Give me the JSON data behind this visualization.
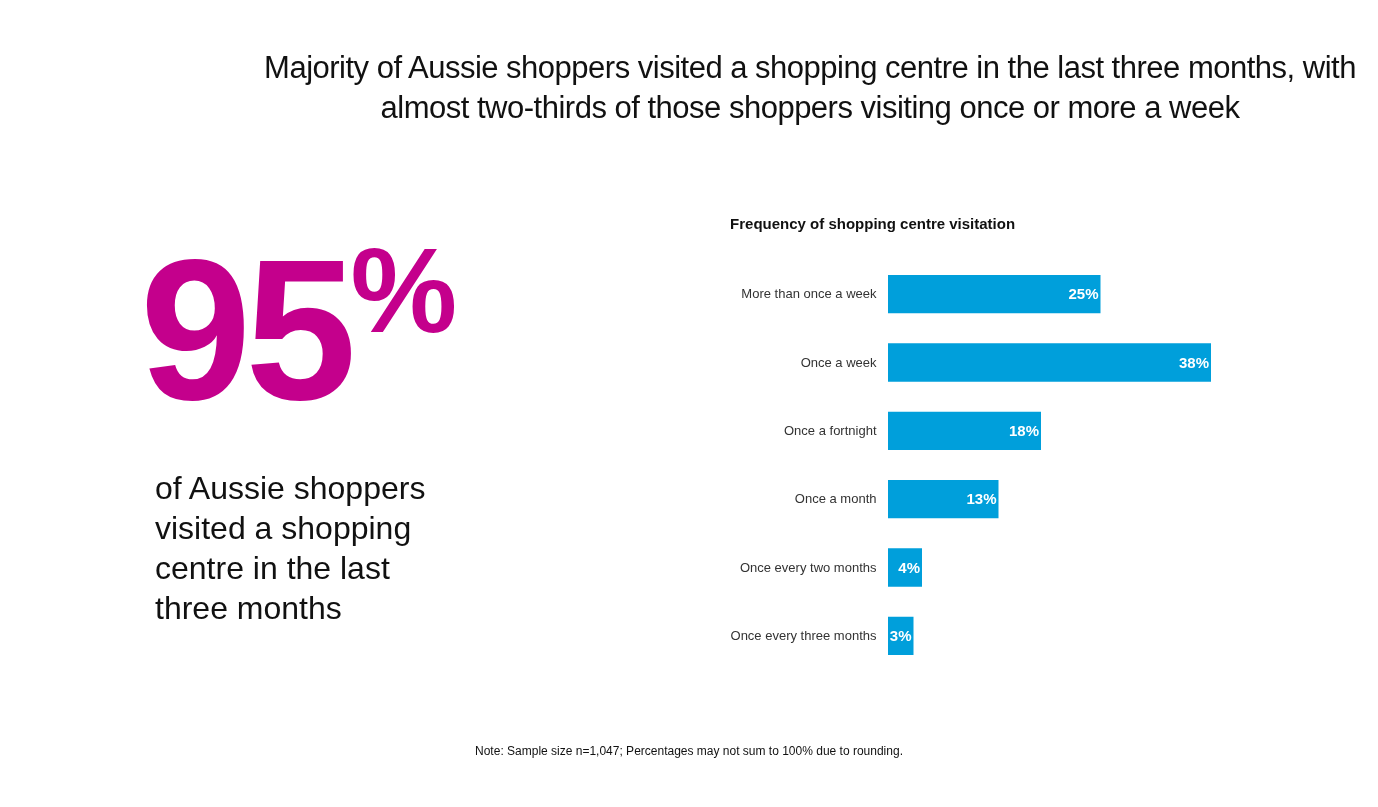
{
  "chart_data": [
    {
      "type": "other",
      "title": "Majority of Aussie shoppers visited a shopping centre in the last three months, with almost two-thirds of those shoppers visiting once or more a week",
      "color": "#c4008c",
      "annotations": [
        "95%",
        "of Aussie shoppers visited a shopping centre in the last three months"
      ]
    },
    {
      "type": "bar",
      "orientation": "horizontal",
      "title": "Frequency of shopping centre visitation",
      "categories": [
        "More than once a week",
        "Once a week",
        "Once a fortnight",
        "Once a month",
        "Once every two months",
        "Once every three months"
      ],
      "values": [
        25,
        38,
        18,
        13,
        4,
        3
      ],
      "color": "#009fdb",
      "value_labels": [
        "25%",
        "38%",
        "18%",
        "13%",
        "4%",
        "3%"
      ],
      "annotations": [
        "Note: Sample size n=1,047; Percentages may not sum to 100% due to rounding."
      ]
    }
  ]
}
